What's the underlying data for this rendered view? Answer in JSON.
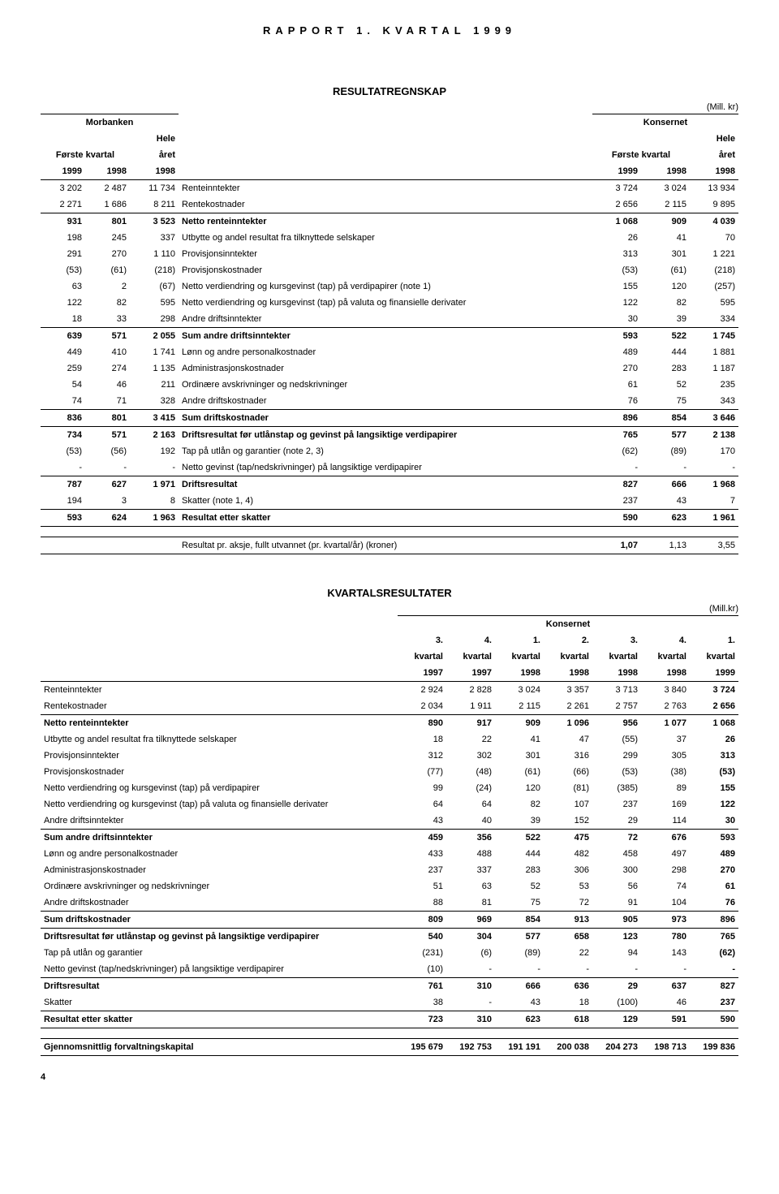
{
  "header": "RAPPORT 1. KVARTAL 1999",
  "page_number": "4",
  "table1": {
    "title": "RESULTATREGNSKAP",
    "unit": "(Mill. kr)",
    "group_left": "Morbanken",
    "group_right": "Konsernet",
    "sub_left": "Første kvartal",
    "sub_hele": "Hele",
    "sub_aret": "året",
    "sub_right": "Første kvartal",
    "years": [
      "1999",
      "1998",
      "1998",
      "1999",
      "1998",
      "1998"
    ],
    "rows": [
      {
        "l": "Renteinntekter",
        "v": [
          "3 202",
          "2 487",
          "11 734",
          "3 724",
          "3 024",
          "13 934"
        ],
        "bold": false
      },
      {
        "l": "Rentekostnader",
        "v": [
          "2 271",
          "1 686",
          "8 211",
          "2 656",
          "2 115",
          "9 895"
        ],
        "bold": false
      },
      {
        "l": "Netto renteinntekter",
        "v": [
          "931",
          "801",
          "3 523",
          "1 068",
          "909",
          "4 039"
        ],
        "bold": true,
        "bt": true
      },
      {
        "l": "Utbytte og andel resultat fra tilknyttede selskaper",
        "v": [
          "198",
          "245",
          "337",
          "26",
          "41",
          "70"
        ],
        "bold": false
      },
      {
        "l": "Provisjonsinntekter",
        "v": [
          "291",
          "270",
          "1 110",
          "313",
          "301",
          "1 221"
        ],
        "bold": false
      },
      {
        "l": "Provisjonskostnader",
        "v": [
          "(53)",
          "(61)",
          "(218)",
          "(53)",
          "(61)",
          "(218)"
        ],
        "bold": false
      },
      {
        "l": "Netto verdiendring og kursgevinst (tap) på verdipapirer (note 1)",
        "v": [
          "63",
          "2",
          "(67)",
          "155",
          "120",
          "(257)"
        ],
        "bold": false
      },
      {
        "l": "Netto verdiendring og kursgevinst (tap) på valuta og finansielle derivater",
        "v": [
          "122",
          "82",
          "595",
          "122",
          "82",
          "595"
        ],
        "bold": false
      },
      {
        "l": "Andre driftsinntekter",
        "v": [
          "18",
          "33",
          "298",
          "30",
          "39",
          "334"
        ],
        "bold": false
      },
      {
        "l": "Sum andre driftsinntekter",
        "v": [
          "639",
          "571",
          "2 055",
          "593",
          "522",
          "1 745"
        ],
        "bold": true,
        "bt": true
      },
      {
        "l": "Lønn og andre personalkostnader",
        "v": [
          "449",
          "410",
          "1 741",
          "489",
          "444",
          "1 881"
        ],
        "bold": false
      },
      {
        "l": "Administrasjonskostnader",
        "v": [
          "259",
          "274",
          "1 135",
          "270",
          "283",
          "1 187"
        ],
        "bold": false
      },
      {
        "l": "Ordinære avskrivninger og nedskrivninger",
        "v": [
          "54",
          "46",
          "211",
          "61",
          "52",
          "235"
        ],
        "bold": false
      },
      {
        "l": "Andre driftskostnader",
        "v": [
          "74",
          "71",
          "328",
          "76",
          "75",
          "343"
        ],
        "bold": false
      },
      {
        "l": "Sum driftskostnader",
        "v": [
          "836",
          "801",
          "3 415",
          "896",
          "854",
          "3 646"
        ],
        "bold": true,
        "bt": true
      },
      {
        "l": "Driftsresultat før utlånstap og gevinst på langsiktige verdipapirer",
        "v": [
          "734",
          "571",
          "2 163",
          "765",
          "577",
          "2 138"
        ],
        "bold": true,
        "bt": true
      },
      {
        "l": "Tap på utlån og garantier (note 2, 3)",
        "v": [
          "(53)",
          "(56)",
          "192",
          "(62)",
          "(89)",
          "170"
        ],
        "bold": false
      },
      {
        "l": "Netto gevinst (tap/nedskrivninger) på langsiktige verdipapirer",
        "v": [
          "-",
          "-",
          "-",
          "-",
          "-",
          "-"
        ],
        "bold": false
      },
      {
        "l": "Driftsresultat",
        "v": [
          "787",
          "627",
          "1 971",
          "827",
          "666",
          "1 968"
        ],
        "bold": true,
        "bt": true
      },
      {
        "l": "Skatter (note 1, 4)",
        "v": [
          "194",
          "3",
          "8",
          "237",
          "43",
          "7"
        ],
        "bold": false
      },
      {
        "l": "Resultat etter skatter",
        "v": [
          "593",
          "624",
          "1 963",
          "590",
          "623",
          "1 961"
        ],
        "bold": true,
        "bt": true,
        "bb": true
      }
    ],
    "footer": {
      "l": "Resultat pr. aksje, fullt utvannet (pr. kvartal/år) (kroner)",
      "v": [
        "1,07",
        "1,13",
        "3,55"
      ],
      "bold": true
    }
  },
  "table2": {
    "title": "KVARTALSRESULTATER",
    "unit": "(Mill.kr)",
    "group": "Konsernet",
    "col_head1": [
      "3.",
      "4.",
      "1.",
      "2.",
      "3.",
      "4.",
      "1."
    ],
    "col_head2": [
      "kvartal",
      "kvartal",
      "kvartal",
      "kvartal",
      "kvartal",
      "kvartal",
      "kvartal"
    ],
    "col_head3": [
      "1997",
      "1997",
      "1998",
      "1998",
      "1998",
      "1998",
      "1999"
    ],
    "rows": [
      {
        "l": "Renteinntekter",
        "v": [
          "2 924",
          "2 828",
          "3 024",
          "3 357",
          "3 713",
          "3 840",
          "3 724"
        ],
        "bold": false,
        "lastbold": true
      },
      {
        "l": "Rentekostnader",
        "v": [
          "2 034",
          "1 911",
          "2 115",
          "2 261",
          "2 757",
          "2 763",
          "2 656"
        ],
        "bold": false,
        "lastbold": true
      },
      {
        "l": "Netto renteinntekter",
        "v": [
          "890",
          "917",
          "909",
          "1 096",
          "956",
          "1 077",
          "1 068"
        ],
        "bold": true,
        "bt": true
      },
      {
        "l": "Utbytte og andel resultat fra tilknyttede selskaper",
        "v": [
          "18",
          "22",
          "41",
          "47",
          "(55)",
          "37",
          "26"
        ],
        "bold": false,
        "lastbold": true
      },
      {
        "l": "Provisjonsinntekter",
        "v": [
          "312",
          "302",
          "301",
          "316",
          "299",
          "305",
          "313"
        ],
        "bold": false,
        "lastbold": true
      },
      {
        "l": "Provisjonskostnader",
        "v": [
          "(77)",
          "(48)",
          "(61)",
          "(66)",
          "(53)",
          "(38)",
          "(53)"
        ],
        "bold": false,
        "lastbold": true
      },
      {
        "l": "Netto verdiendring og kursgevinst (tap) på verdipapirer",
        "v": [
          "99",
          "(24)",
          "120",
          "(81)",
          "(385)",
          "89",
          "155"
        ],
        "bold": false,
        "lastbold": true
      },
      {
        "l": "Netto verdiendring og kursgevinst (tap) på valuta og finansielle derivater",
        "v": [
          "64",
          "64",
          "82",
          "107",
          "237",
          "169",
          "122"
        ],
        "bold": false,
        "lastbold": true
      },
      {
        "l": "Andre driftsinntekter",
        "v": [
          "43",
          "40",
          "39",
          "152",
          "29",
          "114",
          "30"
        ],
        "bold": false,
        "lastbold": true
      },
      {
        "l": "Sum andre driftsinntekter",
        "v": [
          "459",
          "356",
          "522",
          "475",
          "72",
          "676",
          "593"
        ],
        "bold": true,
        "bt": true
      },
      {
        "l": "Lønn og andre personalkostnader",
        "v": [
          "433",
          "488",
          "444",
          "482",
          "458",
          "497",
          "489"
        ],
        "bold": false,
        "lastbold": true
      },
      {
        "l": "Administrasjonskostnader",
        "v": [
          "237",
          "337",
          "283",
          "306",
          "300",
          "298",
          "270"
        ],
        "bold": false,
        "lastbold": true
      },
      {
        "l": "Ordinære avskrivninger og nedskrivninger",
        "v": [
          "51",
          "63",
          "52",
          "53",
          "56",
          "74",
          "61"
        ],
        "bold": false,
        "lastbold": true
      },
      {
        "l": "Andre driftskostnader",
        "v": [
          "88",
          "81",
          "75",
          "72",
          "91",
          "104",
          "76"
        ],
        "bold": false,
        "lastbold": true
      },
      {
        "l": "Sum driftskostnader",
        "v": [
          "809",
          "969",
          "854",
          "913",
          "905",
          "973",
          "896"
        ],
        "bold": true,
        "bt": true
      },
      {
        "l": "Driftsresultat før utlånstap og gevinst på langsiktige verdipapirer",
        "v": [
          "540",
          "304",
          "577",
          "658",
          "123",
          "780",
          "765"
        ],
        "bold": true,
        "bt": true
      },
      {
        "l": "Tap på utlån og garantier",
        "v": [
          "(231)",
          "(6)",
          "(89)",
          "22",
          "94",
          "143",
          "(62)"
        ],
        "bold": false,
        "lastbold": true
      },
      {
        "l": "Netto gevinst (tap/nedskrivninger) på langsiktige verdipapirer",
        "v": [
          "(10)",
          "-",
          "-",
          "-",
          "-",
          "-",
          "-"
        ],
        "bold": false,
        "lastbold": true
      },
      {
        "l": "Driftsresultat",
        "v": [
          "761",
          "310",
          "666",
          "636",
          "29",
          "637",
          "827"
        ],
        "bold": true,
        "bt": true
      },
      {
        "l": "Skatter",
        "v": [
          "38",
          "-",
          "43",
          "18",
          "(100)",
          "46",
          "237"
        ],
        "bold": false,
        "lastbold": true
      },
      {
        "l": "Resultat etter skatter",
        "v": [
          "723",
          "310",
          "623",
          "618",
          "129",
          "591",
          "590"
        ],
        "bold": true,
        "bt": true,
        "bb": true
      }
    ],
    "footer": {
      "l": "Gjennomsnittlig forvaltningskapital",
      "v": [
        "195 679",
        "192 753",
        "191 191",
        "200 038",
        "204 273",
        "198 713",
        "199 836"
      ],
      "bold": true
    }
  }
}
